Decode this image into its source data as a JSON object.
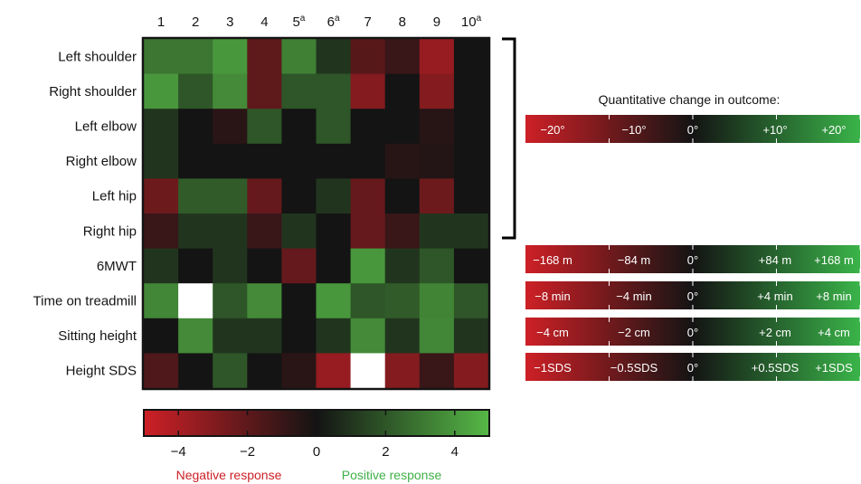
{
  "chart_data": {
    "type": "heatmap",
    "columns": [
      {
        "num": "1",
        "sup": ""
      },
      {
        "num": "2",
        "sup": ""
      },
      {
        "num": "3",
        "sup": ""
      },
      {
        "num": "4",
        "sup": ""
      },
      {
        "num": "5",
        "sup": "a"
      },
      {
        "num": "6",
        "sup": "a"
      },
      {
        "num": "7",
        "sup": ""
      },
      {
        "num": "8",
        "sup": ""
      },
      {
        "num": "9",
        "sup": ""
      },
      {
        "num": "10",
        "sup": "a"
      }
    ],
    "rows": [
      "Left shoulder",
      "Right shoulder",
      "Left elbow",
      "Right elbow",
      "Left hip",
      "Right hip",
      "6MWT",
      "Time on treadmill",
      "Sitting height",
      "Height SDS"
    ],
    "values": [
      [
        3,
        3,
        4,
        -2,
        3.3,
        1,
        -1.8,
        -1,
        -3.5,
        0
      ],
      [
        4,
        2,
        3.6,
        -2,
        2,
        2,
        -3,
        0,
        -3,
        0
      ],
      [
        1,
        0,
        -0.6,
        2,
        0,
        2,
        0,
        0,
        -0.5,
        0
      ],
      [
        1,
        0,
        0,
        0,
        0,
        0,
        0,
        -0.5,
        -0.4,
        0
      ],
      [
        -2.4,
        2.2,
        2.2,
        -2.2,
        0,
        1,
        -2.2,
        0,
        -2.4,
        0
      ],
      [
        -1,
        1,
        1,
        -1,
        1,
        0,
        -2.2,
        -1,
        1,
        1
      ],
      [
        1,
        0,
        1,
        0,
        -2.2,
        0,
        4,
        1,
        2,
        0
      ],
      [
        3.5,
        6,
        2,
        3.6,
        0,
        4,
        2,
        2.2,
        3.4,
        2
      ],
      [
        0,
        3.6,
        1,
        1,
        0,
        1,
        3.6,
        1,
        3.5,
        1
      ],
      [
        -1.6,
        0,
        2,
        0,
        -0.6,
        -3.5,
        6,
        -3,
        -1,
        -3
      ]
    ],
    "value_range": [
      -5,
      5
    ],
    "color_scale": {
      "negative": "#cd2026",
      "zero": "#141414",
      "positive": "#56b846",
      "saturated_high": "#ffffff"
    },
    "main_colorbar": {
      "ticks": [
        -4,
        -2,
        0,
        2,
        4
      ],
      "tick_labels": [
        "−4",
        "−2",
        "0",
        "2",
        "4"
      ],
      "negative_caption": "Negative response",
      "positive_caption": "Positive response",
      "negative_color": "#cd2026",
      "positive_color": "#40b048"
    },
    "legend_title": "Quantitative change in outcome:",
    "scale_bars": [
      {
        "applies_to": "joint rows",
        "labels": [
          "−20°",
          "−10°",
          "0°",
          "+10°",
          "+20°"
        ]
      },
      {
        "applies_to": "6MWT",
        "labels": [
          "−168 m",
          "−84 m",
          "0°",
          "+84 m",
          "+168 m"
        ]
      },
      {
        "applies_to": "Time on treadmill",
        "labels": [
          "−8 min",
          "−4 min",
          "0°",
          "+4 min",
          "+8 min"
        ]
      },
      {
        "applies_to": "Sitting height",
        "labels": [
          "−4 cm",
          "−2 cm",
          "0°",
          "+2 cm",
          "+4 cm"
        ]
      },
      {
        "applies_to": "Height SDS",
        "labels": [
          "−1SDS",
          "−0.5SDS",
          "0°",
          "+0.5SDS",
          "+1SDS"
        ]
      }
    ]
  }
}
